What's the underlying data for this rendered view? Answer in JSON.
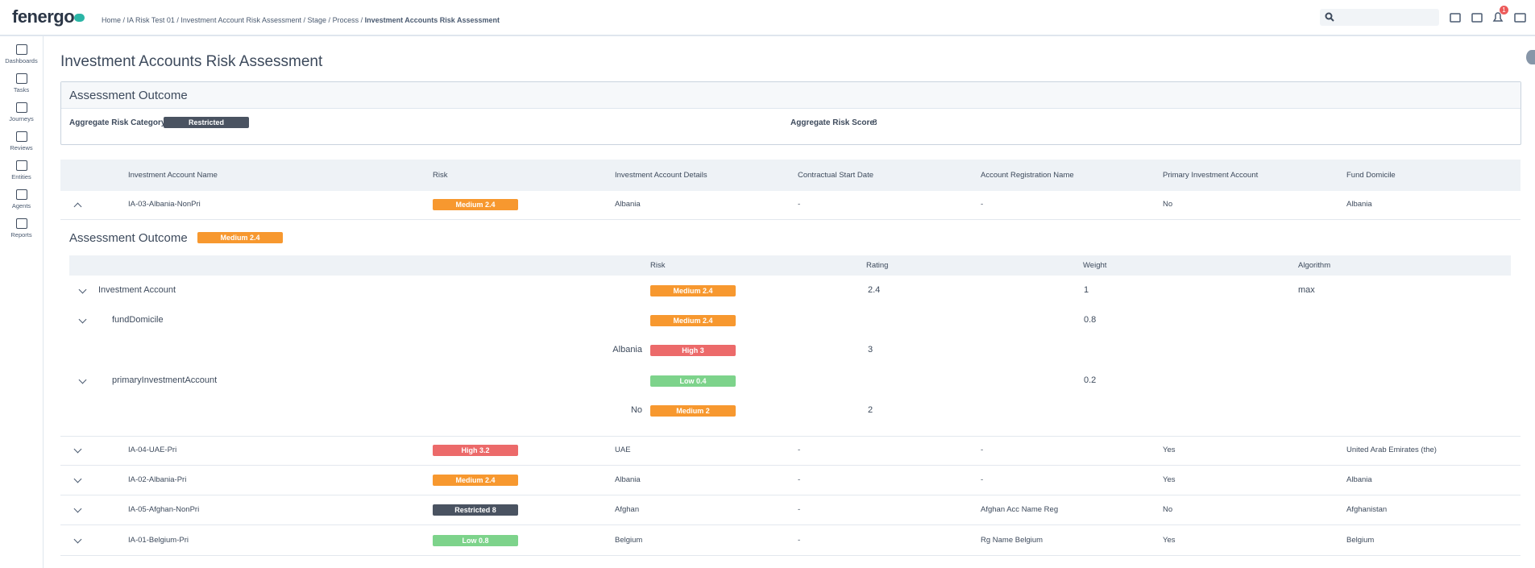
{
  "header": {
    "logo": "fenergo",
    "breadcrumb": [
      "Home",
      "IA Risk Test 01",
      "Investment Account Risk Assessment",
      "Stage",
      "Process",
      "Investment Accounts Risk Assessment"
    ],
    "notifications": 1
  },
  "nav": [
    "Dashboards",
    "Tasks",
    "Journeys",
    "Reviews",
    "Entities",
    "Agents",
    "Reports"
  ],
  "page_title": "Investment Accounts Risk Assessment",
  "outcome": {
    "title": "Assessment Outcome",
    "category_label": "Aggregate Risk Category:",
    "category": {
      "text": "Restricted",
      "color": "#4a5361"
    },
    "score_label": "Aggregate Risk Score:",
    "score": 8
  },
  "table": {
    "headers": [
      "Investment Account Name",
      "Risk",
      "Investment Account Details",
      "Contractual Start Date",
      "Account Registration Name",
      "Primary Investment Account",
      "Fund Domicile"
    ],
    "rows": [
      [
        "IA-03-Albania-NonPri",
        {
          "text": "Medium 2.4",
          "color": "#f7982f"
        },
        "Albania",
        "-",
        "-",
        "No",
        "Albania"
      ],
      [
        "IA-04-UAE-Pri",
        {
          "text": "High 3.2",
          "color": "#ec6a6a"
        },
        "UAE",
        "-",
        "-",
        "Yes",
        "United Arab Emirates (the)"
      ],
      [
        "IA-02-Albania-Pri",
        {
          "text": "Medium 2.4",
          "color": "#f7982f"
        },
        "Albania",
        "-",
        "-",
        "Yes",
        "Albania"
      ],
      [
        "IA-05-Afghan-NonPri",
        {
          "text": "Restricted 8",
          "color": "#4a5361"
        },
        "Afghan",
        "-",
        "Afghan Acc Name Reg",
        "No",
        "Afghanistan"
      ],
      [
        "IA-01-Belgium-Pri",
        {
          "text": "Low 0.8",
          "color": "#7dd38b"
        },
        "Belgium",
        "-",
        "Rg Name Belgium",
        "Yes",
        "Belgium"
      ]
    ]
  },
  "detail": {
    "title": "Assessment Outcome",
    "badge": {
      "text": "Medium 2.4",
      "color": "#f7982f"
    },
    "headers": [
      "Risk",
      "Rating",
      "Weight",
      "Algorithm"
    ],
    "rows": [
      {
        "label": "Investment Account",
        "risk": {
          "text": "Medium 2.4",
          "color": "#f7982f"
        },
        "rating": 2.4,
        "weight": 1,
        "algorithm": "max"
      },
      {
        "label": "fundDomicile",
        "risk": {
          "text": "Medium 2.4",
          "color": "#f7982f"
        },
        "weight": 0.8
      },
      {
        "label": "Albania",
        "risk": {
          "text": "High 3",
          "color": "#ec6a6a"
        },
        "rating": 3
      },
      {
        "label": "primaryInvestmentAccount",
        "risk": {
          "text": "Low 0.4",
          "color": "#7dd38b"
        },
        "weight": 0.2
      },
      {
        "label": "No",
        "risk": {
          "text": "Medium 2",
          "color": "#f7982f"
        },
        "rating": 2
      }
    ]
  }
}
